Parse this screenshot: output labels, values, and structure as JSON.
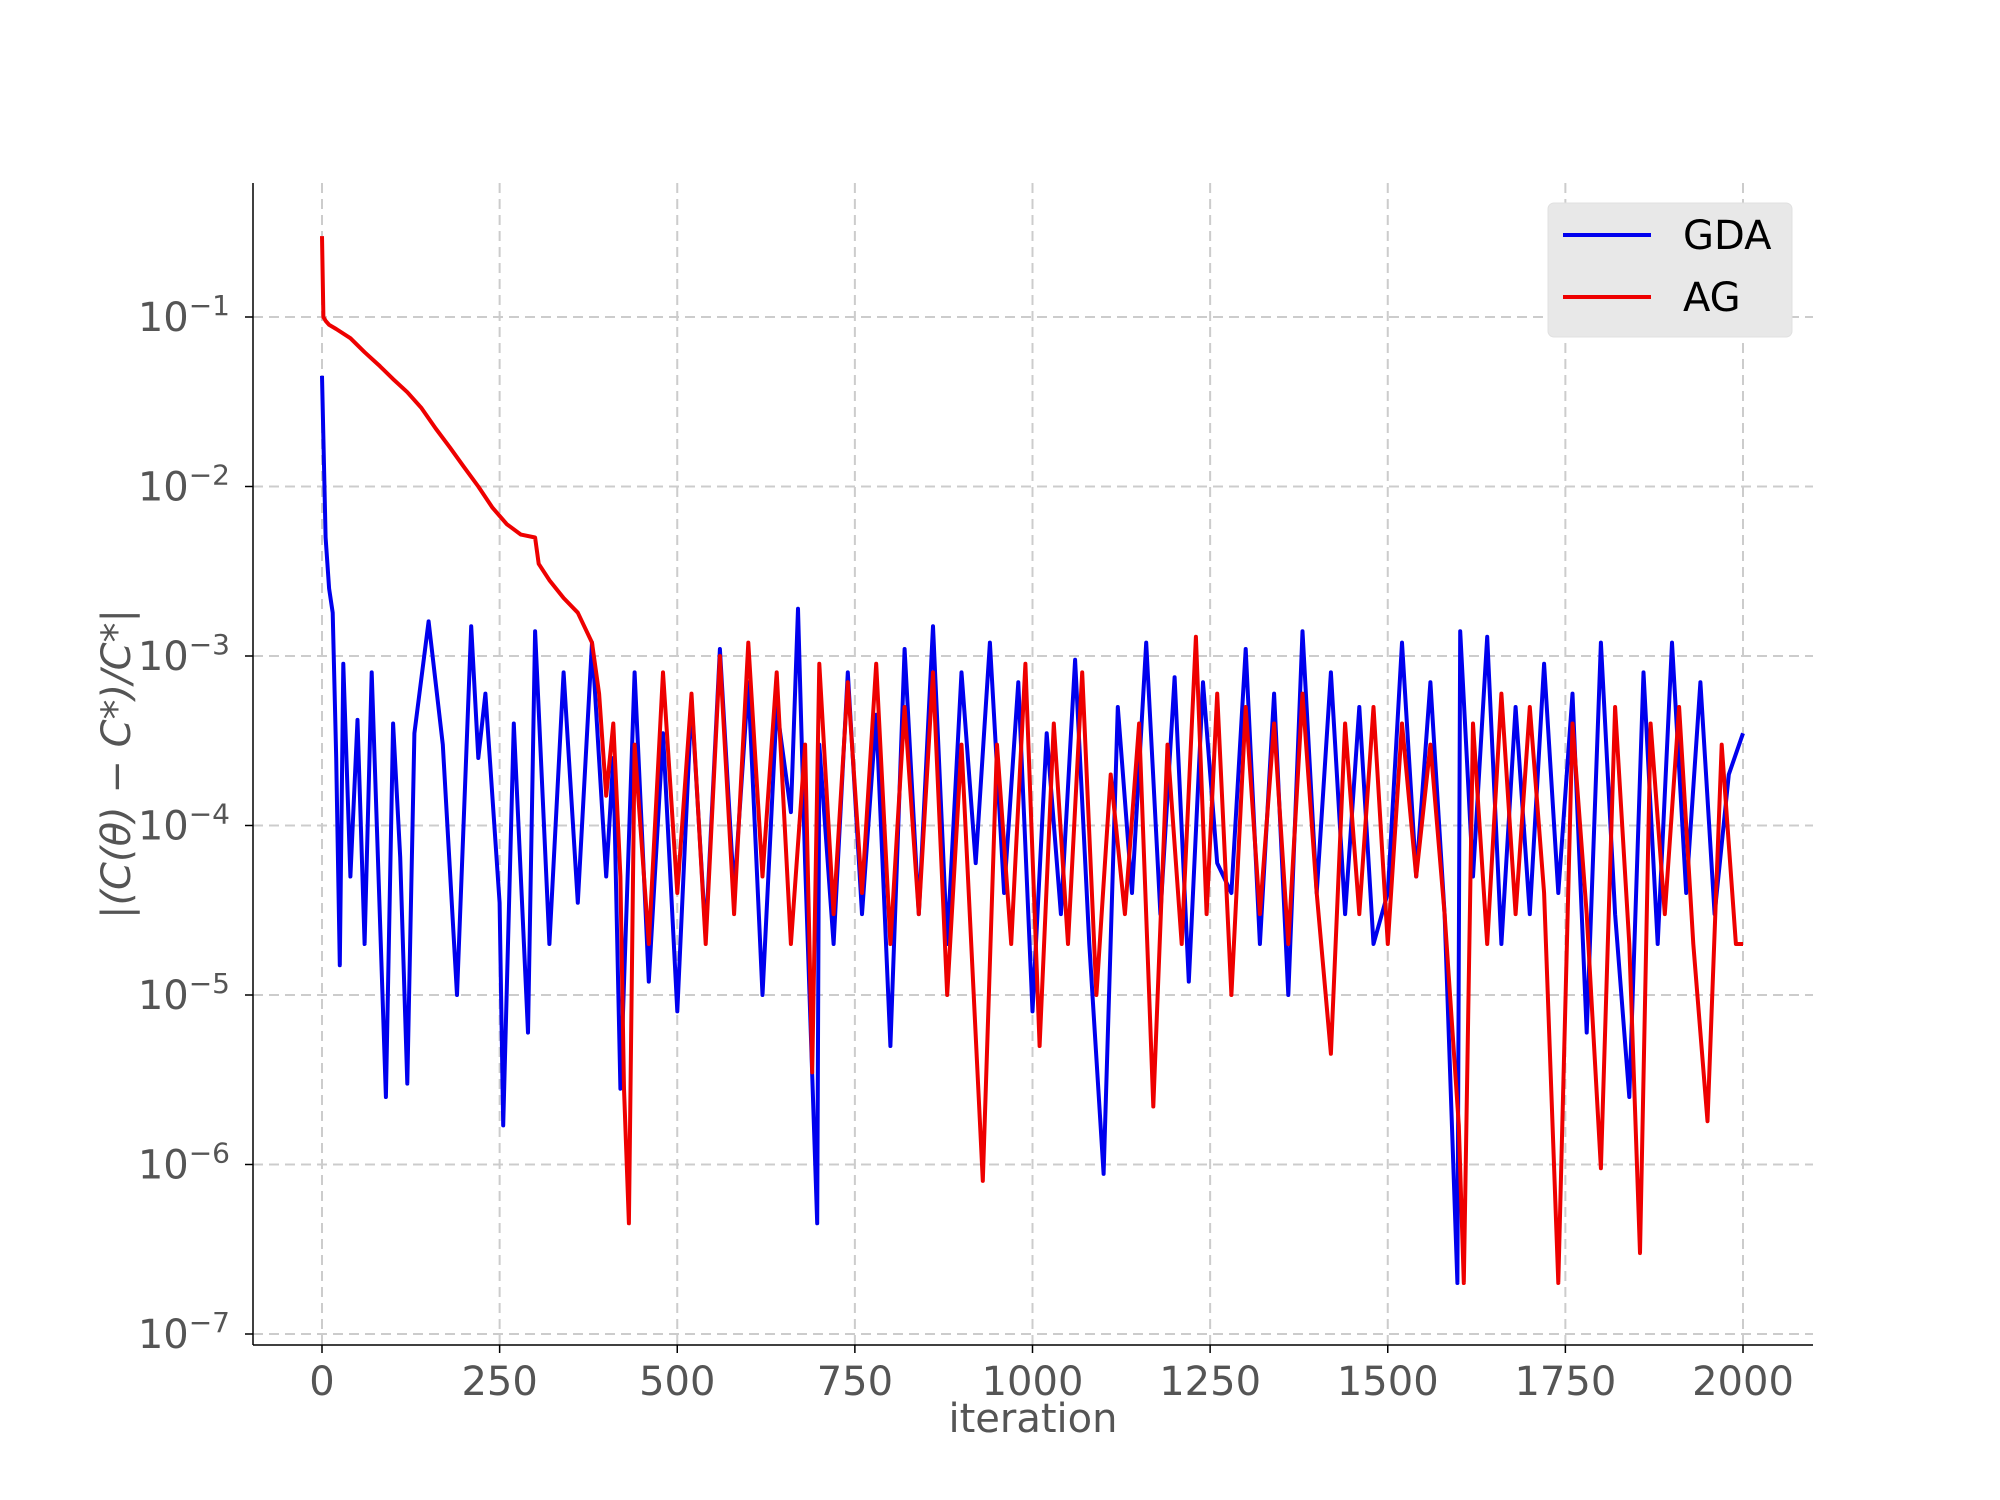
{
  "chart_data": {
    "type": "line",
    "xlabel": "iteration",
    "ylabel": "|(C(θ) − C*)/C*|",
    "x_ticks": [
      {
        "value": 0,
        "label": "0"
      },
      {
        "value": 250,
        "label": "250"
      },
      {
        "value": 500,
        "label": "500"
      },
      {
        "value": 750,
        "label": "750"
      },
      {
        "value": 1000,
        "label": "1000"
      },
      {
        "value": 1250,
        "label": "1250"
      },
      {
        "value": 1500,
        "label": "1500"
      },
      {
        "value": 1750,
        "label": "1750"
      },
      {
        "value": 2000,
        "label": "2000"
      }
    ],
    "y_ticks": [
      {
        "exp": -1,
        "base": "10",
        "sup": "−1"
      },
      {
        "exp": -2,
        "base": "10",
        "sup": "−2"
      },
      {
        "exp": -3,
        "base": "10",
        "sup": "−3"
      },
      {
        "exp": -4,
        "base": "10",
        "sup": "−4"
      },
      {
        "exp": -5,
        "base": "10",
        "sup": "−5"
      },
      {
        "exp": -6,
        "base": "10",
        "sup": "−6"
      },
      {
        "exp": -7,
        "base": "10",
        "sup": "−7"
      }
    ],
    "xlim": [
      -100,
      2100
    ],
    "ylim": [
      5e-08,
      0.6
    ],
    "yscale": "log",
    "grid": true,
    "legend_position": "top-right",
    "series": [
      {
        "name": "GDA",
        "color": "#0000ee",
        "x": [
          0,
          5,
          10,
          15,
          20,
          25,
          30,
          40,
          50,
          60,
          70,
          80,
          90,
          100,
          110,
          120,
          130,
          150,
          170,
          190,
          210,
          220,
          230,
          250,
          255,
          270,
          290,
          300,
          320,
          340,
          360,
          380,
          400,
          410,
          420,
          440,
          460,
          480,
          500,
          520,
          540,
          560,
          580,
          600,
          620,
          640,
          660,
          670,
          680,
          697,
          700,
          720,
          740,
          760,
          780,
          800,
          820,
          840,
          860,
          880,
          900,
          920,
          940,
          960,
          980,
          1000,
          1020,
          1040,
          1060,
          1080,
          1100,
          1120,
          1140,
          1160,
          1180,
          1200,
          1220,
          1240,
          1260,
          1280,
          1300,
          1320,
          1340,
          1360,
          1380,
          1400,
          1420,
          1440,
          1460,
          1480,
          1500,
          1520,
          1540,
          1560,
          1580,
          1598,
          1602,
          1620,
          1640,
          1660,
          1680,
          1700,
          1720,
          1740,
          1760,
          1780,
          1800,
          1820,
          1840,
          1860,
          1880,
          1900,
          1920,
          1940,
          1960,
          1980,
          2000
        ],
        "y": [
          0.045,
          0.005,
          0.0025,
          0.0018,
          0.00025,
          1.5e-05,
          0.0009,
          5e-05,
          0.00042,
          2e-05,
          0.0008,
          4.5e-05,
          2.5e-06,
          0.0004,
          6.5e-05,
          3e-06,
          0.00035,
          0.0016,
          0.0003,
          1e-05,
          0.0015,
          0.00025,
          0.0006,
          3.5e-05,
          1.7e-06,
          0.0004,
          6e-06,
          0.0014,
          2e-05,
          0.0008,
          3.5e-05,
          0.0012,
          5e-05,
          0.00025,
          2.8e-06,
          0.0008,
          1.2e-05,
          0.00035,
          8e-06,
          0.00055,
          2.2e-05,
          0.0011,
          4e-05,
          0.0007,
          1e-05,
          0.0005,
          0.00012,
          0.0019,
          6e-05,
          4.5e-07,
          0.0003,
          2e-05,
          0.0008,
          3e-05,
          0.00045,
          5e-06,
          0.0011,
          3e-05,
          0.0015,
          2e-05,
          0.0008,
          6e-05,
          0.0012,
          4e-05,
          0.0007,
          8e-06,
          0.00035,
          3e-05,
          0.00095,
          2e-05,
          8.8e-07,
          0.0005,
          4e-05,
          0.0012,
          3e-05,
          0.00075,
          1.2e-05,
          0.0007,
          6e-05,
          4e-05,
          0.0011,
          2e-05,
          0.0006,
          1e-05,
          0.0014,
          4e-05,
          0.0008,
          3e-05,
          0.0005,
          2e-05,
          4e-05,
          0.0012,
          5e-05,
          0.0007,
          3e-05,
          2e-07,
          0.0014,
          5e-05,
          0.0013,
          2e-05,
          0.0005,
          3e-05,
          0.0009,
          4e-05,
          0.0006,
          6e-06,
          0.0012,
          3e-05,
          2.5e-06,
          0.0008,
          2e-05,
          0.0012,
          4e-05,
          0.0007,
          3e-05,
          0.0002,
          0.00035
        ]
      },
      {
        "name": "AG",
        "color": "#ee0000",
        "x": [
          0,
          2,
          5,
          10,
          20,
          40,
          60,
          80,
          100,
          120,
          140,
          160,
          180,
          200,
          220,
          240,
          260,
          280,
          300,
          305,
          320,
          340,
          360,
          380,
          390,
          400,
          410,
          420,
          425,
          432,
          440,
          460,
          480,
          500,
          520,
          540,
          560,
          580,
          600,
          620,
          640,
          660,
          680,
          690,
          700,
          720,
          740,
          760,
          780,
          800,
          820,
          840,
          860,
          880,
          900,
          930,
          950,
          970,
          990,
          1010,
          1030,
          1050,
          1070,
          1090,
          1110,
          1130,
          1150,
          1170,
          1190,
          1210,
          1230,
          1245,
          1260,
          1280,
          1300,
          1320,
          1340,
          1360,
          1380,
          1400,
          1420,
          1440,
          1460,
          1480,
          1500,
          1520,
          1540,
          1560,
          1580,
          1600,
          1607,
          1620,
          1640,
          1660,
          1680,
          1700,
          1720,
          1740,
          1760,
          1780,
          1800,
          1820,
          1840,
          1855,
          1870,
          1890,
          1910,
          1930,
          1950,
          1970,
          1990,
          2000
        ],
        "y": [
          0.3,
          0.1,
          0.095,
          0.09,
          0.085,
          0.075,
          0.062,
          0.052,
          0.043,
          0.036,
          0.029,
          0.022,
          0.017,
          0.013,
          0.01,
          0.0075,
          0.006,
          0.0052,
          0.005,
          0.0035,
          0.0028,
          0.0022,
          0.0018,
          0.0012,
          0.0006,
          0.00015,
          0.0004,
          5e-05,
          2.8e-06,
          4.5e-07,
          0.0003,
          2e-05,
          0.0008,
          4e-05,
          0.0006,
          2e-05,
          0.001,
          3e-05,
          0.0012,
          5e-05,
          0.0008,
          2e-05,
          0.0003,
          3.5e-06,
          0.0009,
          3e-05,
          0.0007,
          4e-05,
          0.0009,
          2e-05,
          0.0005,
          3e-05,
          0.0008,
          1e-05,
          0.0003,
          8e-07,
          0.0003,
          2e-05,
          0.0009,
          5e-06,
          0.0004,
          2e-05,
          0.0008,
          1e-05,
          0.0002,
          3e-05,
          0.0004,
          2.2e-06,
          0.0003,
          2e-05,
          0.0013,
          3e-05,
          0.0006,
          1e-05,
          0.0005,
          3e-05,
          0.0004,
          2e-05,
          0.0006,
          4e-05,
          4.5e-06,
          0.0004,
          3e-05,
          0.0005,
          2e-05,
          0.0004,
          5e-05,
          0.0003,
          3e-05,
          1.7e-06,
          2e-07,
          0.0004,
          2e-05,
          0.0006,
          3e-05,
          0.0005,
          4e-05,
          2e-07,
          0.0004,
          3e-05,
          9.5e-07,
          0.0005,
          2e-05,
          3e-07,
          0.0004,
          3e-05,
          0.0005,
          2e-05,
          1.8e-06,
          0.0003,
          2e-05,
          2e-05
        ]
      }
    ]
  }
}
